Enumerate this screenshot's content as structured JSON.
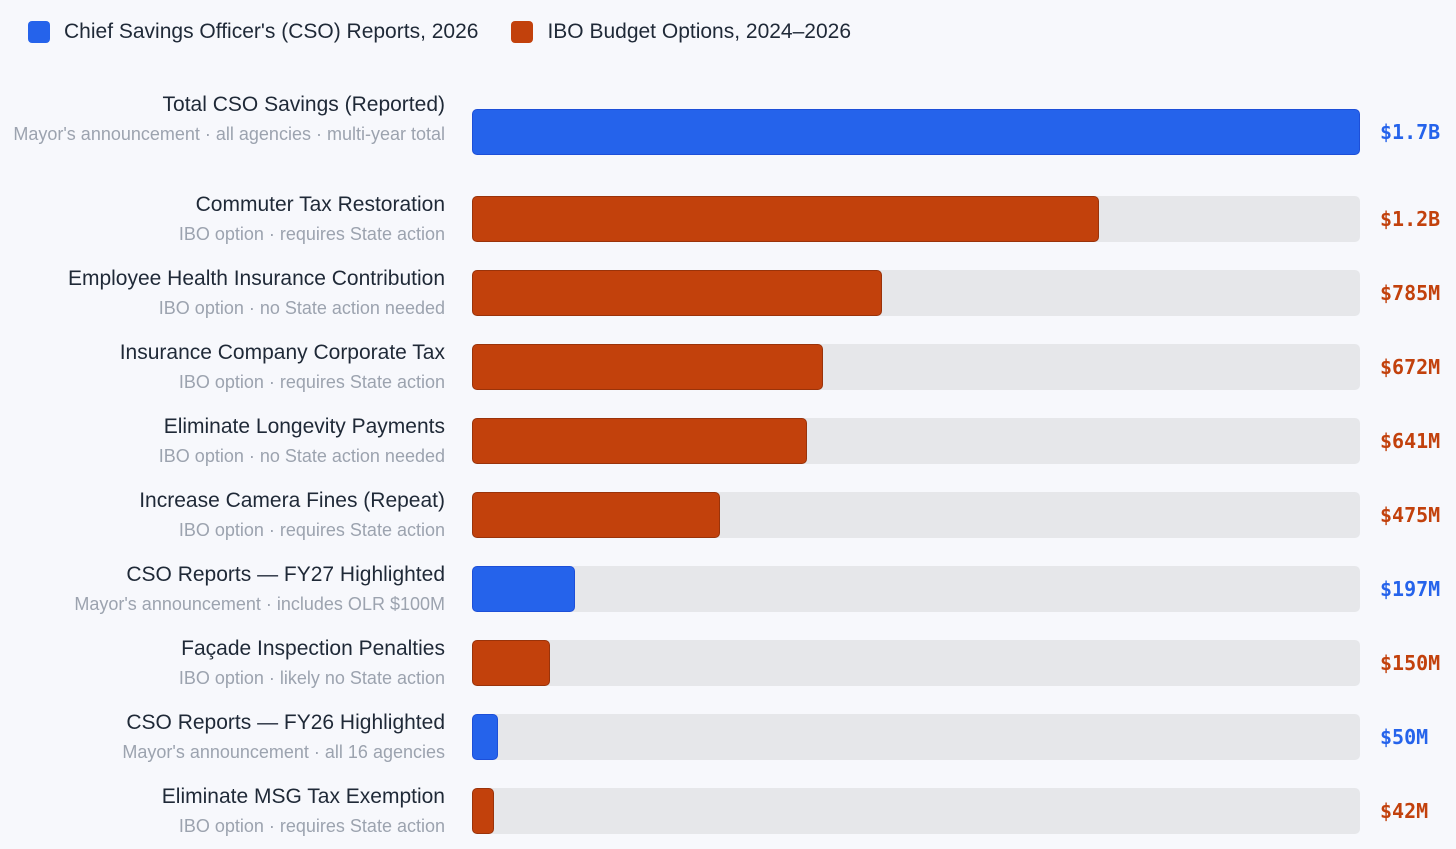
{
  "colors": {
    "cso": "#2563eb",
    "cso_border": "#1d4fd8",
    "ibo": "#c2410c",
    "ibo_border": "#9a330a",
    "track": "#e6e7ea"
  },
  "legend": [
    {
      "label": "Chief Savings Officer's (CSO) Reports, 2026",
      "group": "cso"
    },
    {
      "label": "IBO Budget Options, 2024–2026",
      "group": "ibo"
    }
  ],
  "chart_data": {
    "type": "bar",
    "orientation": "horizontal",
    "unit": "USD",
    "xlim": [
      0,
      1700000000
    ],
    "series": [
      {
        "name": "Chief Savings Officer's (CSO) Reports, 2026",
        "group": "cso"
      },
      {
        "name": "IBO Budget Options, 2024–2026",
        "group": "ibo"
      }
    ],
    "items": [
      {
        "label": "Total CSO Savings (Reported)",
        "sub": "Mayor's announcement · all agencies · multi-year total",
        "value": 1700000000,
        "display": "$1.7B",
        "group": "cso"
      },
      {
        "label": "Commuter Tax Restoration",
        "sub": "IBO option · requires State action",
        "value": 1200000000,
        "display": "$1.2B",
        "group": "ibo"
      },
      {
        "label": "Employee Health Insurance Contribution",
        "sub": "IBO option · no State action needed",
        "value": 785000000,
        "display": "$785M",
        "group": "ibo"
      },
      {
        "label": "Insurance Company Corporate Tax",
        "sub": "IBO option · requires State action",
        "value": 672000000,
        "display": "$672M",
        "group": "ibo"
      },
      {
        "label": "Eliminate Longevity Payments",
        "sub": "IBO option · no State action needed",
        "value": 641000000,
        "display": "$641M",
        "group": "ibo"
      },
      {
        "label": "Increase Camera Fines (Repeat)",
        "sub": "IBO option · requires State action",
        "value": 475000000,
        "display": "$475M",
        "group": "ibo"
      },
      {
        "label": "CSO Reports — FY27 Highlighted",
        "sub": "Mayor's announcement · includes OLR $100M",
        "value": 197000000,
        "display": "$197M",
        "group": "cso"
      },
      {
        "label": "Façade Inspection Penalties",
        "sub": "IBO option · likely no State action",
        "value": 150000000,
        "display": "$150M",
        "group": "ibo"
      },
      {
        "label": "CSO Reports — FY26 Highlighted",
        "sub": "Mayor's announcement · all 16 agencies",
        "value": 50000000,
        "display": "$50M",
        "group": "cso"
      },
      {
        "label": "Eliminate MSG Tax Exemption",
        "sub": "IBO option · requires State action",
        "value": 42000000,
        "display": "$42M",
        "group": "ibo"
      }
    ]
  }
}
